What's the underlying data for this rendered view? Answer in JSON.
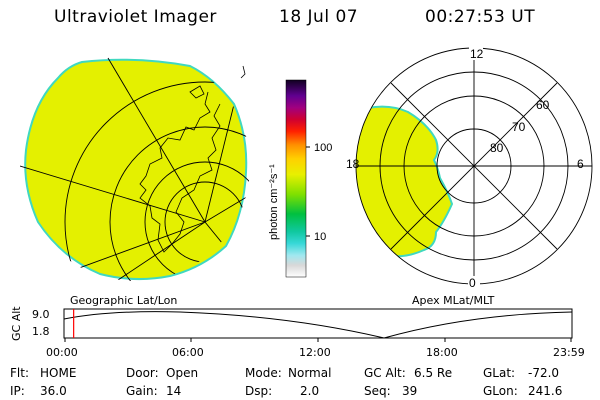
{
  "header": {
    "title": "Ultraviolet Imager",
    "date": "18 Jul 07",
    "time": "00:27:53 UT"
  },
  "left_panel": {
    "caption": "Geographic Lat/Lon"
  },
  "right_panel": {
    "caption": "Apex MLat/MLT",
    "mlt_labels": {
      "top": "12",
      "left": "18",
      "right": "6",
      "bottom": "0"
    },
    "lat_labels": [
      "60",
      "70",
      "80"
    ]
  },
  "colorbar": {
    "unit_label": "photon cm⁻²s⁻¹",
    "ticks": [
      "100",
      "10"
    ]
  },
  "timeline": {
    "ylabel": "GC Alt",
    "ymax": "9.0",
    "ymin": "1.8",
    "xticks": [
      "00:00",
      "06:00",
      "12:00",
      "18:00",
      "23:59"
    ],
    "cursor_fraction": 0.019
  },
  "status": {
    "flt_label": "Flt:",
    "flt_value": "HOME",
    "ip_label": "IP:",
    "ip_value": "36.0",
    "door_label": "Door:",
    "door_value": "Open",
    "gain_label": "Gain:",
    "gain_value": "14",
    "mode_label": "Mode:",
    "mode_value": "Normal",
    "dsp_label": "Dsp:",
    "dsp_value": "2.0",
    "gcalt_label": "GC Alt:",
    "gcalt_value": "6.5 Re",
    "seq_label": "Seq:",
    "seq_value": "39",
    "glat_label": "GLat:",
    "glat_value": "-72.0",
    "glon_label": "GLon:",
    "glon_value": "241.6"
  },
  "colors": {
    "aurora_fill": "#e4f000",
    "aurora_edge": "#40d8c0",
    "cursor": "#ff0000"
  }
}
